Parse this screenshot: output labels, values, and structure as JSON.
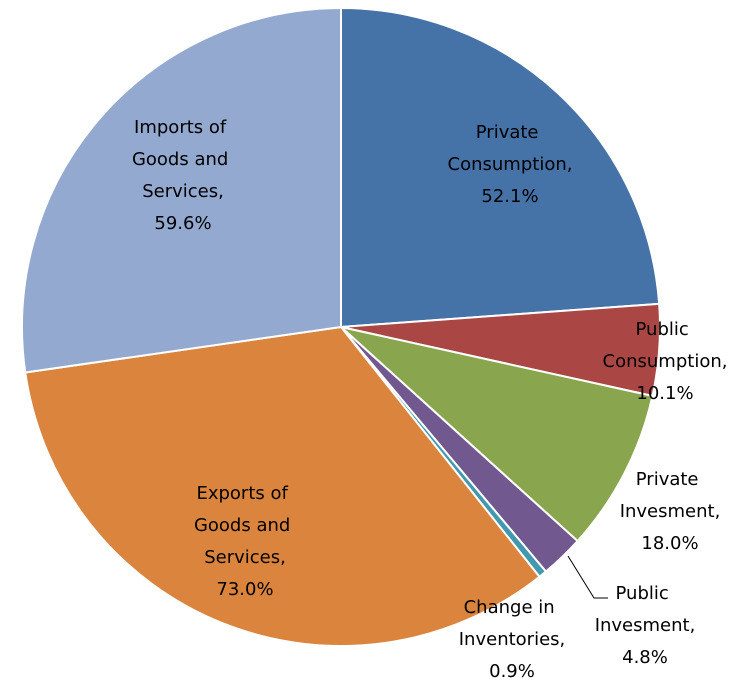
{
  "chart_data": {
    "type": "pie",
    "categories": [
      "Private Consumption,",
      "Public Consumption,",
      "Private Invesment,",
      "Public Invesment,",
      "Change in Inventories,",
      "Exports of Goods and Services,",
      "Imports of Goods and Services,"
    ],
    "values": [
      52.1,
      10.1,
      18.0,
      4.8,
      0.9,
      73.0,
      59.6
    ],
    "value_labels": [
      "52.1%",
      "10.1%",
      "18.0%",
      "4.8%",
      "0.9%",
      "73.0%",
      "59.6%"
    ],
    "colors": [
      "#4572a7",
      "#aa4643",
      "#89a54e",
      "#71588f",
      "#4198af",
      "#db843d",
      "#93a9cf"
    ]
  }
}
